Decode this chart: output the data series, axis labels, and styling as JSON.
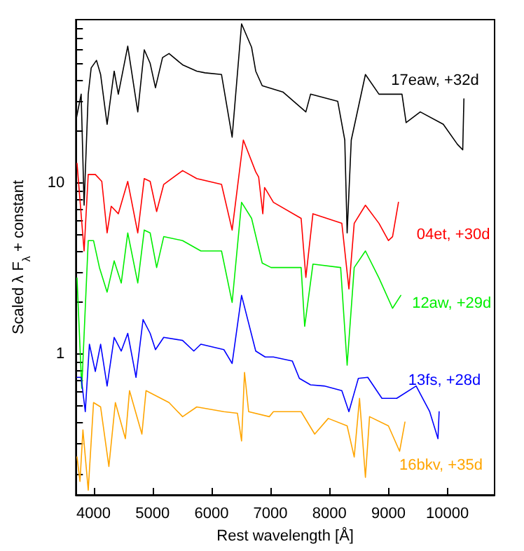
{
  "chart_data": {
    "type": "line",
    "xlabel": "Rest wavelength [Å]",
    "ylabel": "Scaled λ F$_{λ}$ + constant",
    "log": "y",
    "xlim": [
      3700,
      10800
    ],
    "ylim": [
      0.15,
      90
    ],
    "xticks": [
      4000,
      5000,
      6000,
      7000,
      8000,
      9000,
      10000
    ],
    "yticks": [
      {
        "value": 0.2,
        "label": null
      },
      {
        "value": 0.3,
        "label": null
      },
      {
        "value": 0.4,
        "label": null
      },
      {
        "value": 0.5,
        "label": null
      },
      {
        "value": 0.6,
        "label": null
      },
      {
        "value": 0.7,
        "label": null
      },
      {
        "value": 0.8,
        "label": null
      },
      {
        "value": 0.9,
        "label": null
      },
      1,
      {
        "value": 2,
        "label": null
      },
      {
        "value": 3,
        "label": null
      },
      {
        "value": 4,
        "label": null
      },
      {
        "value": 5,
        "label": null
      },
      {
        "value": 6,
        "label": null
      },
      {
        "value": 7,
        "label": null
      },
      {
        "value": 8,
        "label": null
      },
      {
        "value": 9,
        "label": null
      },
      10,
      {
        "value": 20,
        "label": null
      },
      {
        "value": 30,
        "label": null
      },
      {
        "value": 40,
        "label": null
      },
      {
        "value": 50,
        "label": null
      },
      {
        "value": 60,
        "label": null
      },
      {
        "value": 70,
        "label": null
      },
      {
        "value": 80,
        "label": null
      }
    ],
    "grid": false,
    "legend": false,
    "marker": "none",
    "line_style": "solid",
    "series": [
      {
        "name": "17eaw, +32d",
        "color": "#000000",
        "x": [
          3710,
          3790,
          3840,
          3910,
          3960,
          4050,
          4120,
          4230,
          4350,
          4420,
          4580,
          4750,
          4860,
          4960,
          5050,
          5170,
          5280,
          5510,
          5750,
          5890,
          6170,
          6350,
          6510,
          6680,
          6750,
          6860,
          7210,
          7600,
          7680,
          8140,
          8260,
          8300,
          8370,
          8610,
          8840,
          9230,
          9300,
          9540,
          9930,
          10170,
          10260,
          10280
        ],
        "values": [
          24,
          33,
          7.4,
          33,
          47,
          52,
          43,
          22,
          45,
          33,
          63,
          26,
          60,
          50,
          36,
          54,
          57,
          49,
          45,
          44,
          43,
          18.5,
          85,
          62,
          45,
          37,
          34,
          26,
          33,
          30,
          17.8,
          5.1,
          17.8,
          43,
          33,
          33,
          22.5,
          26,
          22,
          16.8,
          15.6,
          31
        ]
      },
      {
        "name": "04et, +30d",
        "color": "#ff0000",
        "x": [
          3720,
          3840,
          3910,
          4030,
          4140,
          4230,
          4300,
          4420,
          4580,
          4750,
          4860,
          4960,
          5070,
          5190,
          5510,
          5750,
          6170,
          6350,
          6540,
          6750,
          6800,
          6870,
          6900,
          7050,
          7520,
          7600,
          7720,
          8210,
          8330,
          8420,
          8610,
          8840,
          9000,
          9070,
          9170
        ],
        "values": [
          13,
          4.0,
          11.2,
          11.2,
          10.2,
          5.1,
          7.3,
          6.6,
          10.2,
          5.1,
          10.6,
          10.2,
          6.8,
          9.8,
          11.8,
          10.6,
          9.8,
          5.3,
          17.8,
          11.6,
          10.8,
          6.6,
          9.4,
          7.7,
          6.2,
          2.8,
          6.6,
          5.8,
          2.4,
          5.8,
          7.4,
          5.8,
          4.6,
          4.85,
          7.7
        ]
      },
      {
        "name": "12aw, +29d",
        "color": "#00ee00",
        "x": [
          3720,
          3800,
          3910,
          4000,
          4100,
          4230,
          4350,
          4470,
          4580,
          4750,
          4860,
          4960,
          5070,
          5190,
          5510,
          5820,
          6170,
          6350,
          6510,
          6680,
          6860,
          7010,
          7520,
          7580,
          7720,
          8190,
          8300,
          8420,
          8610,
          8840,
          9070,
          9210
        ],
        "values": [
          2.78,
          0.63,
          4.6,
          4.6,
          3.2,
          2.3,
          3.5,
          2.6,
          5.1,
          2.6,
          5.3,
          5.1,
          3.2,
          4.85,
          4.6,
          4.0,
          4.0,
          2.0,
          7.7,
          6.2,
          3.4,
          3.2,
          3.2,
          1.45,
          3.35,
          3.2,
          0.86,
          3.2,
          4.0,
          2.78,
          1.85,
          2.2
        ]
      },
      {
        "name": "13fs, +28d",
        "color": "#0000ff",
        "x": [
          3720,
          3790,
          3860,
          3930,
          4030,
          4120,
          4230,
          4350,
          4470,
          4580,
          4720,
          4840,
          4960,
          5050,
          5190,
          5510,
          5700,
          5820,
          6210,
          6350,
          6510,
          6750,
          6910,
          7050,
          7370,
          7490,
          7680,
          7910,
          8210,
          8330,
          8490,
          8650,
          8890,
          9140,
          9470,
          9700,
          9840,
          9860
        ],
        "values": [
          0.73,
          0.73,
          0.46,
          1.14,
          0.79,
          1.14,
          0.65,
          1.25,
          1.04,
          1.32,
          0.73,
          1.59,
          1.32,
          1.06,
          1.25,
          1.2,
          1.04,
          1.14,
          1.06,
          0.88,
          2.2,
          1.04,
          0.96,
          0.96,
          0.91,
          0.72,
          0.66,
          0.65,
          0.61,
          0.46,
          0.72,
          0.73,
          0.55,
          0.55,
          0.65,
          0.46,
          0.32,
          0.46
        ]
      },
      {
        "name": "16bkv, +35d",
        "color": "#ffa500",
        "x": [
          3720,
          3770,
          3820,
          3910,
          4000,
          4120,
          4260,
          4370,
          4540,
          4610,
          4820,
          4890,
          5280,
          5510,
          5750,
          6210,
          6440,
          6510,
          6560,
          6630,
          6980,
          7050,
          7520,
          7750,
          7980,
          8300,
          8420,
          8510,
          8610,
          8680,
          9000,
          9190,
          9280
        ],
        "values": [
          0.25,
          0.18,
          0.36,
          0.16,
          0.52,
          0.49,
          0.22,
          0.52,
          0.32,
          0.61,
          0.34,
          0.61,
          0.52,
          0.43,
          0.49,
          0.46,
          0.45,
          0.31,
          0.78,
          0.46,
          0.43,
          0.46,
          0.46,
          0.34,
          0.42,
          0.38,
          0.25,
          0.55,
          0.19,
          0.43,
          0.38,
          0.27,
          0.4
        ]
      }
    ]
  }
}
